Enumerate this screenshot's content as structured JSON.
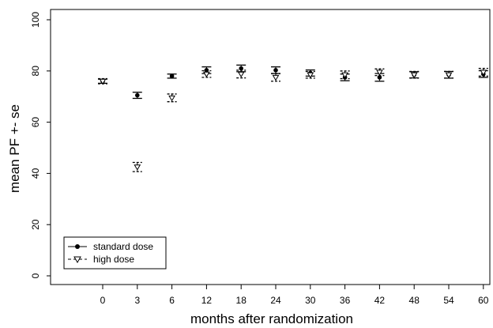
{
  "chart_data": {
    "type": "scatter",
    "title": "",
    "xlabel": "months after randomization",
    "ylabel": "mean PF +- se",
    "categories": [
      "0",
      "3",
      "6",
      "12",
      "18",
      "24",
      "30",
      "36",
      "42",
      "48",
      "54",
      "60"
    ],
    "ylim": [
      0,
      100
    ],
    "yticks": [
      "0",
      "20",
      "40",
      "60",
      "80",
      "100"
    ],
    "grid": false,
    "legend_position": "bottom-left",
    "series": [
      {
        "name": "standard dose",
        "marker": "filled-circle",
        "line_style": "solid",
        "values": [
          76.0,
          70.5,
          78.0,
          80.3,
          81.0,
          80.3,
          79.2,
          77.5,
          77.5,
          78.5,
          78.5,
          78.8
        ],
        "se": [
          0.8,
          1.2,
          0.8,
          1.3,
          1.3,
          1.3,
          1.2,
          1.3,
          1.5,
          1.2,
          1.3,
          1.3
        ]
      },
      {
        "name": "high dose",
        "marker": "open-triangle-down",
        "line_style": "dashed",
        "values": [
          76.0,
          42.5,
          69.5,
          78.8,
          78.8,
          77.5,
          78.5,
          78.5,
          79.5,
          78.5,
          78.5,
          79.5
        ],
        "se": [
          1.0,
          1.8,
          1.5,
          1.3,
          1.5,
          1.5,
          1.3,
          1.5,
          1.3,
          1.3,
          1.3,
          1.5
        ]
      }
    ]
  }
}
